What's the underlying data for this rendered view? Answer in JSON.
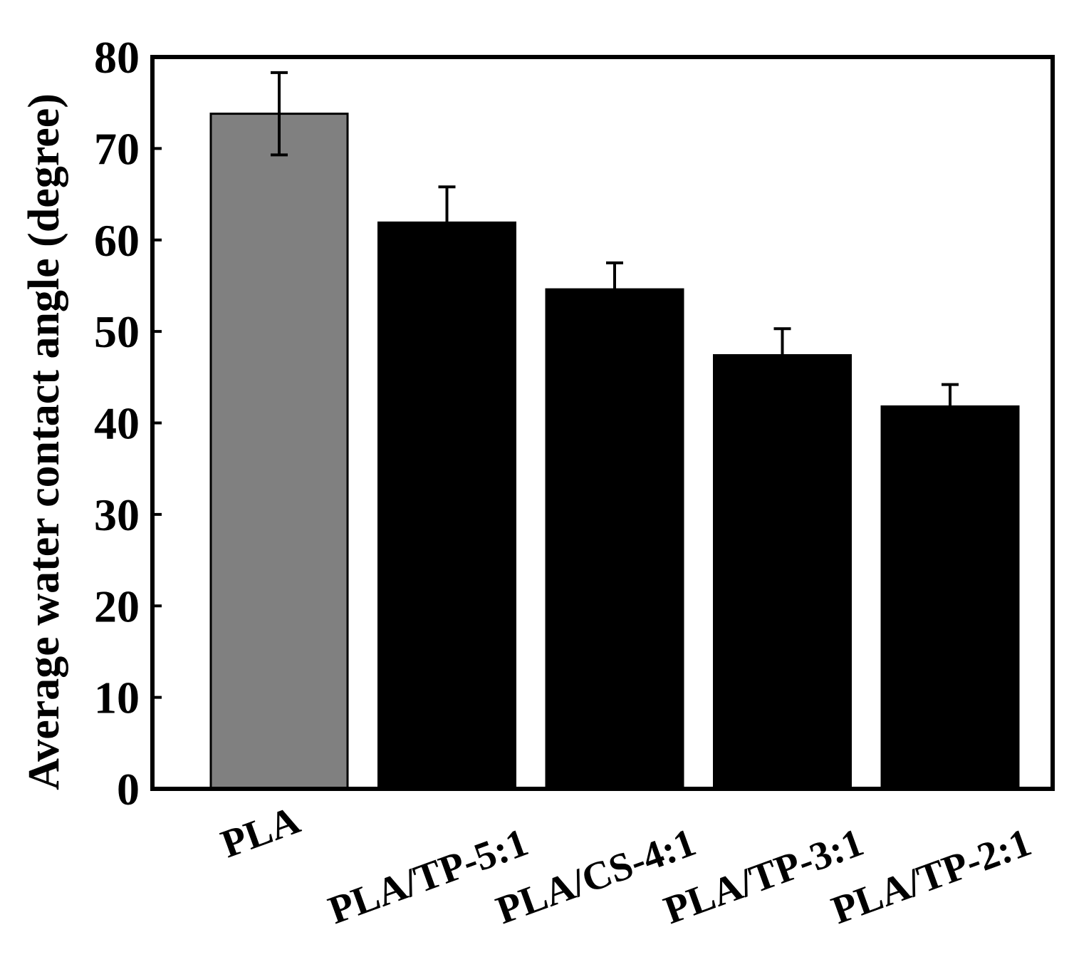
{
  "chart_data": {
    "type": "bar",
    "title": "",
    "xlabel": "",
    "ylabel": "Average water contact angle (degree)",
    "ylim": [
      0,
      80
    ],
    "yticks": [
      "0",
      "10",
      "20",
      "30",
      "40",
      "50",
      "60",
      "70",
      "80"
    ],
    "categories": [
      "PLA",
      "PLA/TP-5:1",
      "PLA/CS-4:1",
      "PLA/TP-3:1",
      "PLA/TP-2:1"
    ],
    "values": [
      73.8,
      61.9,
      54.6,
      47.4,
      41.8
    ],
    "errors": [
      4.5,
      3.9,
      2.9,
      2.9,
      2.4
    ],
    "error_style": [
      "both",
      "upper",
      "upper",
      "upper",
      "upper"
    ],
    "bar_colors": [
      "#808080",
      "#000000",
      "#000000",
      "#000000",
      "#000000"
    ],
    "grid": false,
    "legend": "none"
  }
}
